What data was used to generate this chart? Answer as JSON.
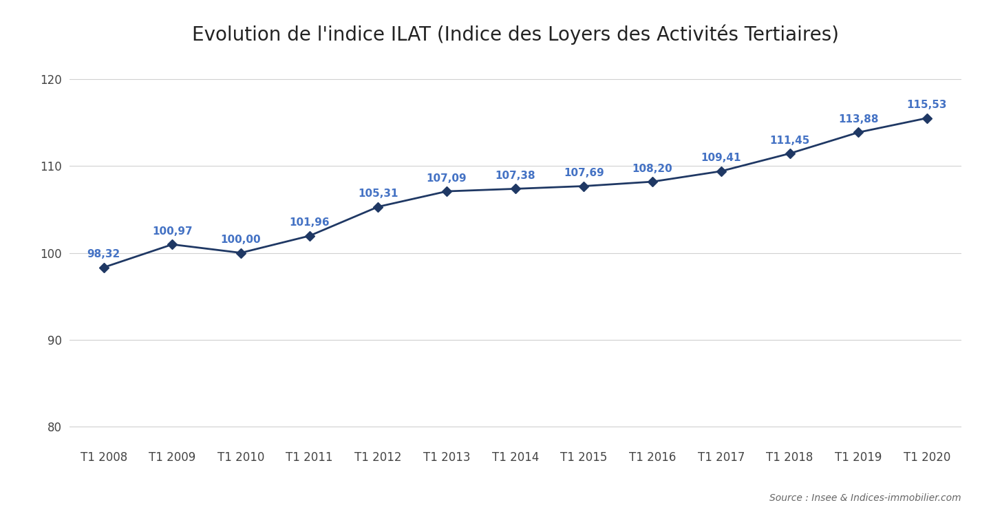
{
  "title": "Evolution de l'indice ILAT (Indice des Loyers des Activités Tertiaires)",
  "categories": [
    "T1 2008",
    "T1 2009",
    "T1 2010",
    "T1 2011",
    "T1 2012",
    "T1 2013",
    "T1 2014",
    "T1 2015",
    "T1 2016",
    "T1 2017",
    "T1 2018",
    "T1 2019",
    "T1 2020"
  ],
  "values": [
    98.32,
    100.97,
    100.0,
    101.96,
    105.31,
    107.09,
    107.38,
    107.69,
    108.2,
    109.41,
    111.45,
    113.88,
    115.53
  ],
  "labels": [
    "98,32",
    "100,97",
    "100,00",
    "101,96",
    "105,31",
    "107,09",
    "107,38",
    "107,69",
    "108,20",
    "109,41",
    "111,45",
    "113,88",
    "115,53"
  ],
  "line_color": "#1f3864",
  "marker_color": "#1f3864",
  "label_color": "#4472c4",
  "background_color": "#ffffff",
  "ylim": [
    78,
    122
  ],
  "yticks": [
    80,
    90,
    100,
    110,
    120
  ],
  "title_fontsize": 20,
  "tick_fontsize": 12,
  "label_fontsize": 11,
  "source_text": "Source : Insee & Indices-immobilier.com",
  "grid_color": "#d0d0d0",
  "label_offsets_y": [
    0.9,
    0.9,
    0.9,
    0.9,
    0.9,
    0.9,
    0.9,
    0.9,
    0.9,
    0.9,
    0.9,
    0.9,
    0.9
  ],
  "label_ha": [
    "center",
    "center",
    "center",
    "center",
    "center",
    "center",
    "center",
    "center",
    "center",
    "center",
    "center",
    "center",
    "center"
  ]
}
